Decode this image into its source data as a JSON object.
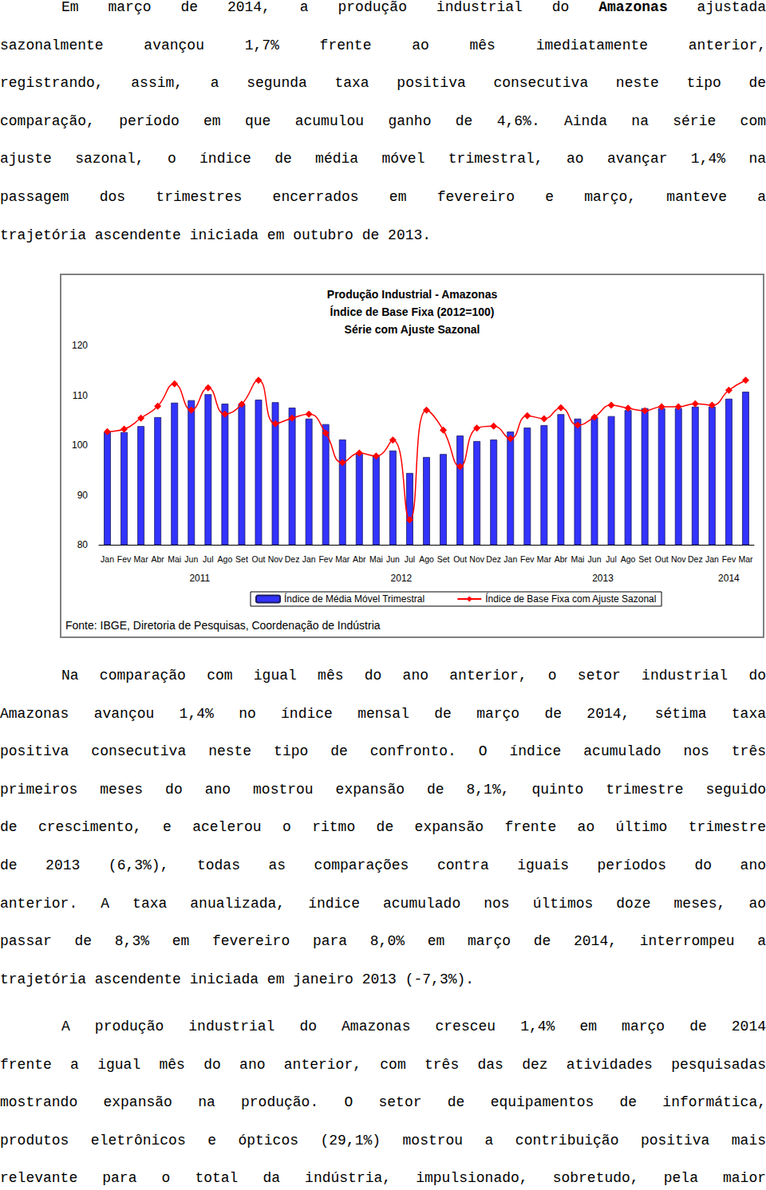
{
  "text_before": [
    {
      "lines": [
        [
          "Em março de 2014, a produção industrial do ",
          {
            "text": "Amazonas",
            "bold": true
          },
          " ajustada"
        ],
        "sazonalmente avançou 1,7% frente ao mês imediatamente anterior,",
        "registrando, assim, a segunda taxa positiva consecutiva neste tipo de",
        "comparação, período em que acumulou ganho de 4,6%. Ainda na série com",
        "ajuste sazonal, o índice de média móvel trimestral, ao avançar 1,4% na",
        "passagem dos trimestres encerrados em fevereiro e março, manteve a",
        "trajetória ascendente iniciada em outubro de 2013."
      ],
      "continues": false
    }
  ],
  "chart_data": {
    "type": "bar",
    "title": [
      "Produção Industrial - Amazonas",
      "Índice de Base Fixa (2012=100)",
      "Série com Ajuste Sazonal"
    ],
    "source": "Fonte: IBGE, Diretoria de Pesquisas, Coordenação de Indústria",
    "categories": [
      "Jan",
      "Fev",
      "Mar",
      "Abr",
      "Mai",
      "Jun",
      "Jul",
      "Ago",
      "Set",
      "Out",
      "Nov",
      "Dez",
      "Jan",
      "Fev",
      "Mar",
      "Abr",
      "Mai",
      "Jun",
      "Jul",
      "Ago",
      "Set",
      "Out",
      "Nov",
      "Dez",
      "Jan",
      "Fev",
      "Mar",
      "Abr",
      "Mai",
      "Jun",
      "Jul",
      "Ago",
      "Set",
      "Out",
      "Nov",
      "Dez",
      "Jan",
      "Fev",
      "Mar"
    ],
    "x_groups": [
      {
        "label": "2011",
        "count": 12
      },
      {
        "label": "2012",
        "count": 12
      },
      {
        "label": "2013",
        "count": 12
      },
      {
        "label": "2014",
        "count": 3
      }
    ],
    "series": [
      {
        "name": "Índice de Média Móvel Trimestral",
        "type": "bar",
        "color": "#3333ff",
        "values": [
          102.6,
          102.6,
          103.8,
          105.6,
          108.5,
          109.0,
          110.2,
          108.3,
          108.2,
          109.1,
          108.6,
          107.5,
          105.3,
          104.2,
          101.1,
          98.4,
          97.8,
          98.9,
          94.4,
          97.6,
          98.2,
          101.9,
          100.8,
          101.1,
          102.7,
          103.5,
          104.0,
          106.2,
          105.3,
          105.6,
          105.8,
          107.0,
          107.4,
          107.4,
          107.4,
          107.7,
          107.7,
          109.3,
          110.7
        ]
      },
      {
        "name": "Índice de Base Fixa com Ajuste Sazonal",
        "type": "line",
        "color": "#ff0000",
        "marker": "diamond",
        "line_style": "smooth",
        "values": [
          102.7,
          103.2,
          105.4,
          107.8,
          112.3,
          107.0,
          111.5,
          106.2,
          108.2,
          113.0,
          104.3,
          105.4,
          106.2,
          102.4,
          96.5,
          98.4,
          97.8,
          101.0,
          85.0,
          107.0,
          103.0,
          95.7,
          103.4,
          103.8,
          101.3,
          105.9,
          105.3,
          107.5,
          104.0,
          105.6,
          108.0,
          107.4,
          106.9,
          107.7,
          107.7,
          108.3,
          108.0,
          111.0,
          113.0
        ]
      }
    ],
    "ylim": [
      80,
      120
    ],
    "yticks": [
      80,
      90,
      100,
      110,
      120
    ],
    "grid": false,
    "legend": "bottom"
  },
  "text_after": [
    {
      "lines": [
        "Na comparação com igual mês do ano anterior, o setor industrial do",
        "Amazonas avançou 1,4% no índice mensal de março de 2014, sétima taxa",
        "positiva consecutiva neste tipo de confronto. O índice acumulado nos três",
        "primeiros meses do ano mostrou expansão de 8,1%, quinto trimestre seguido",
        "de crescimento, e acelerou o ritmo de expansão frente ao último trimestre",
        "de 2013 (6,3%), todas as comparações contra iguais períodos do ano",
        "anterior. A taxa anualizada, índice acumulado nos últimos doze meses, ao",
        "passar de 8,3% em fevereiro para 8,0% em março de 2014, interrompeu a",
        "trajetória ascendente iniciada em janeiro 2013 (-7,3%)."
      ],
      "continues": false
    },
    {
      "lines": [
        "A produção industrial do Amazonas cresceu 1,4% em março de 2014",
        "frente a igual mês do ano anterior, com três das dez atividades pesquisadas",
        "mostrando expansão na produção. O setor de equipamentos de informática,",
        "produtos eletrônicos e ópticos (29,1%) mostrou a contribuição positiva mais",
        "relevante para o total da indústria, impulsionado, sobretudo, pela maior"
      ],
      "continues": true
    }
  ]
}
